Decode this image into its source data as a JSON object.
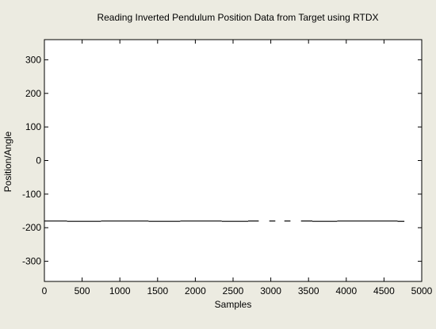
{
  "figure": {
    "background": "#ecebe1"
  },
  "chart_data": {
    "type": "line",
    "title": "Reading Inverted Pendulum Position Data from Target using RTDX",
    "xlabel": "Samples",
    "ylabel": "Position/Angle",
    "xlim": [
      0,
      5000
    ],
    "ylim": [
      -360,
      360
    ],
    "xticks": [
      0,
      500,
      1000,
      1500,
      2000,
      2500,
      3000,
      3500,
      4000,
      4500,
      5000
    ],
    "yticks": [
      -300,
      -200,
      -100,
      0,
      100,
      200,
      300
    ],
    "grid": false,
    "plot_background": "#ffffff",
    "line_color": "#000000",
    "series": [
      {
        "segments": [
          {
            "x": [
              0,
              300
            ],
            "y": [
              -180,
              -180
            ]
          },
          {
            "x": [
              300,
              750
            ],
            "y": [
              -181,
              -181
            ]
          },
          {
            "x": [
              750,
              1380
            ],
            "y": [
              -180,
              -180
            ]
          },
          {
            "x": [
              1380,
              1800
            ],
            "y": [
              -181,
              -181
            ]
          },
          {
            "x": [
              1800,
              2350
            ],
            "y": [
              -180,
              -180
            ]
          },
          {
            "x": [
              2350,
              2700
            ],
            "y": [
              -181,
              -181
            ]
          },
          {
            "x": [
              2700,
              2840
            ],
            "y": [
              -180,
              -180
            ]
          },
          {
            "x": [
              2980,
              3060
            ],
            "y": [
              -180,
              -180
            ]
          },
          {
            "x": [
              3180,
              3260
            ],
            "y": [
              -180,
              -180
            ]
          },
          {
            "x": [
              3400,
              3550
            ],
            "y": [
              -180,
              -180
            ]
          },
          {
            "x": [
              3550,
              3880
            ],
            "y": [
              -181,
              -181
            ]
          },
          {
            "x": [
              3880,
              4680
            ],
            "y": [
              -180,
              -180
            ]
          },
          {
            "x": [
              4680,
              4770
            ],
            "y": [
              -181,
              -181
            ]
          }
        ]
      }
    ]
  }
}
